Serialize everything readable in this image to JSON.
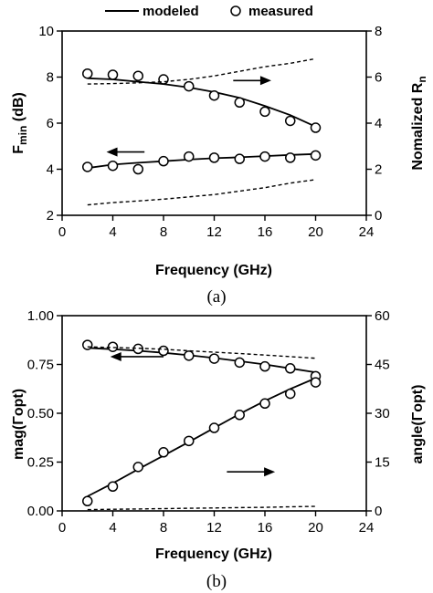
{
  "legend": {
    "modeled": "modeled",
    "measured": "measured"
  },
  "chart_data": [
    {
      "type": "line",
      "caption": "(a)",
      "xlabel": "Frequency (GHz)",
      "xlim": [
        0,
        24
      ],
      "xticks": [
        0,
        4,
        8,
        12,
        16,
        20,
        24
      ],
      "ylabel_left": {
        "main": "F",
        "sub": "min",
        "rest": " (dB)"
      },
      "ylabel_right": {
        "main": "Nomalized R",
        "sub": "n",
        "rest": ""
      },
      "ylim_left": [
        2,
        10
      ],
      "yticks_left": [
        2,
        4,
        6,
        8,
        10
      ],
      "ylim_right": [
        0,
        8
      ],
      "yticks_right": [
        0,
        2,
        4,
        6,
        8
      ],
      "series": [
        {
          "role": "modeled",
          "axis": "right",
          "style": "solid",
          "x": [
            2,
            4,
            6,
            8,
            10,
            12,
            14,
            16,
            18,
            20
          ],
          "y": [
            5.95,
            5.9,
            5.8,
            5.7,
            5.55,
            5.35,
            5.1,
            4.75,
            4.35,
            3.85
          ]
        },
        {
          "role": "measured",
          "axis": "right",
          "style": "marker",
          "x": [
            2,
            4,
            6,
            8,
            10,
            12,
            14,
            16,
            18,
            20
          ],
          "y": [
            6.15,
            6.1,
            6.05,
            5.9,
            5.6,
            5.2,
            4.9,
            4.5,
            4.1,
            3.8
          ]
        },
        {
          "role": "dashed-upper",
          "axis": "right",
          "style": "dashed",
          "x": [
            2,
            4,
            6,
            8,
            10,
            12,
            14,
            16,
            18,
            20
          ],
          "y": [
            5.7,
            5.72,
            5.75,
            5.8,
            5.9,
            6.05,
            6.25,
            6.45,
            6.6,
            6.8
          ]
        },
        {
          "role": "modeled",
          "axis": "left",
          "style": "solid",
          "x": [
            2,
            4,
            6,
            8,
            10,
            12,
            14,
            16,
            18,
            20
          ],
          "y": [
            4.05,
            4.2,
            4.28,
            4.35,
            4.42,
            4.48,
            4.52,
            4.57,
            4.62,
            4.66
          ]
        },
        {
          "role": "measured",
          "axis": "left",
          "style": "marker",
          "x": [
            2,
            4,
            6,
            8,
            10,
            12,
            14,
            16,
            18,
            20
          ],
          "y": [
            4.1,
            4.15,
            4.0,
            4.35,
            4.55,
            4.5,
            4.45,
            4.55,
            4.5,
            4.6
          ]
        },
        {
          "role": "dashed-lower",
          "axis": "left",
          "style": "dashed",
          "x": [
            2,
            4,
            6,
            8,
            10,
            12,
            14,
            16,
            18,
            20
          ],
          "y": [
            2.45,
            2.55,
            2.62,
            2.7,
            2.8,
            2.9,
            3.05,
            3.2,
            3.4,
            3.55
          ]
        }
      ],
      "annotations": [
        {
          "type": "arrow",
          "direction": "right",
          "from": [
            13.5,
            7.85
          ],
          "to": [
            16.5,
            7.85
          ]
        },
        {
          "type": "arrow",
          "direction": "left",
          "from": [
            6.5,
            4.75
          ],
          "to": [
            3.5,
            4.75
          ]
        }
      ]
    },
    {
      "type": "line",
      "caption": "(b)",
      "xlabel": "Frequency (GHz)",
      "xlim": [
        0,
        24
      ],
      "xticks": [
        0,
        4,
        8,
        12,
        16,
        20,
        24
      ],
      "ylabel_left": {
        "main": "mag(Γopt)",
        "sub": "",
        "rest": ""
      },
      "ylabel_right": {
        "main": "angle(Γopt)",
        "sub": "",
        "rest": ""
      },
      "ylim_left": [
        0,
        1
      ],
      "yticks_left": [
        "0.00",
        "0.25",
        "0.50",
        "0.75",
        "1.00"
      ],
      "yticks_left_values": [
        0,
        0.25,
        0.5,
        0.75,
        1
      ],
      "ylim_right": [
        0,
        60
      ],
      "yticks_right": [
        0,
        15,
        30,
        45,
        60
      ],
      "series": [
        {
          "role": "modeled",
          "axis": "left",
          "style": "solid",
          "x": [
            2,
            4,
            6,
            8,
            10,
            12,
            14,
            16,
            18,
            20
          ],
          "y": [
            0.835,
            0.828,
            0.82,
            0.81,
            0.797,
            0.783,
            0.767,
            0.75,
            0.73,
            0.71
          ]
        },
        {
          "role": "measured",
          "axis": "left",
          "style": "marker",
          "x": [
            2,
            4,
            6,
            8,
            10,
            12,
            14,
            16,
            18,
            20
          ],
          "y": [
            0.85,
            0.84,
            0.83,
            0.82,
            0.795,
            0.78,
            0.76,
            0.74,
            0.73,
            0.69
          ]
        },
        {
          "role": "dashed-upper",
          "axis": "left",
          "style": "dashed",
          "x": [
            2,
            4,
            6,
            8,
            10,
            12,
            14,
            16,
            18,
            20
          ],
          "y": [
            0.84,
            0.837,
            0.833,
            0.828,
            0.82,
            0.813,
            0.806,
            0.798,
            0.79,
            0.782
          ]
        },
        {
          "role": "modeled",
          "axis": "right",
          "style": "solid",
          "x": [
            2,
            4,
            6,
            8,
            10,
            12,
            14,
            16,
            18,
            20
          ],
          "y": [
            4.5,
            8.5,
            12.8,
            17.0,
            21.2,
            25.5,
            29.8,
            33.8,
            37.5,
            40.8
          ]
        },
        {
          "role": "measured",
          "axis": "right",
          "style": "marker",
          "x": [
            2,
            4,
            6,
            8,
            10,
            12,
            14,
            16,
            18,
            20
          ],
          "y": [
            3.0,
            7.5,
            13.5,
            18.0,
            21.5,
            25.5,
            29.5,
            33.0,
            36.0,
            39.5
          ]
        },
        {
          "role": "dashed-lower",
          "axis": "right",
          "style": "dashed",
          "x": [
            2,
            4,
            6,
            8,
            10,
            12,
            14,
            16,
            18,
            20
          ],
          "y": [
            0.4,
            0.5,
            0.6,
            0.7,
            0.8,
            0.9,
            1.0,
            1.1,
            1.25,
            1.4
          ]
        }
      ],
      "annotations": [
        {
          "type": "arrow",
          "direction": "left",
          "from": [
            8.0,
            0.79
          ],
          "to": [
            3.8,
            0.79
          ]
        },
        {
          "type": "arrow",
          "direction": "right",
          "from": [
            13.0,
            0.2
          ],
          "to": [
            16.8,
            0.2
          ]
        }
      ]
    }
  ]
}
